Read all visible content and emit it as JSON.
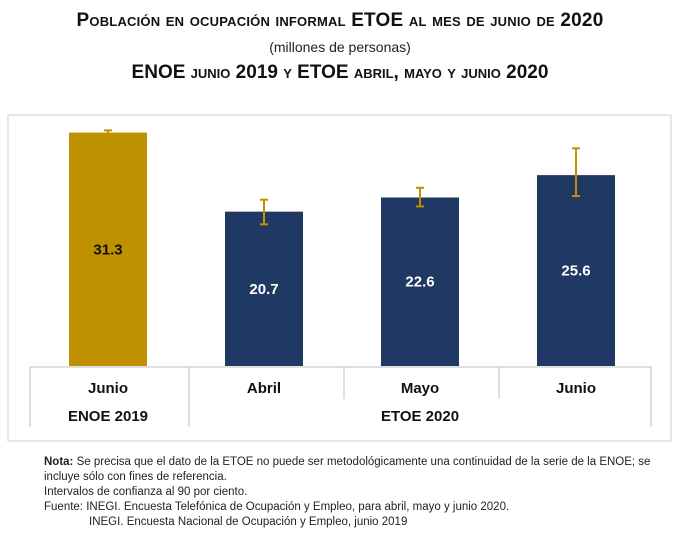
{
  "header": {
    "title": "Población en ocupación informal ETOE al mes de junio de 2020",
    "subtitle": "(millones de personas)",
    "title2": "ENOE junio 2019 y ETOE abril, mayo y junio 2020"
  },
  "chart_data": {
    "type": "bar",
    "categories": [
      "Junio",
      "Abril",
      "Mayo",
      "Junio"
    ],
    "groups": [
      {
        "label": "ENOE 2019",
        "categories": [
          0
        ]
      },
      {
        "label": "ETOE 2020",
        "categories": [
          1,
          2,
          3
        ]
      }
    ],
    "values": [
      31.3,
      20.7,
      22.6,
      25.6
    ],
    "value_labels": [
      "31.3",
      "20.7",
      "22.6",
      "25.6"
    ],
    "error_bars": [
      [
        31.1,
        31.6
      ],
      [
        19.0,
        22.3
      ],
      [
        21.4,
        23.9
      ],
      [
        22.8,
        29.2
      ]
    ],
    "bar_colors": [
      "#bf9000",
      "#1f3864",
      "#1f3864",
      "#1f3864"
    ],
    "error_color": "#bf9000",
    "ylim": [
      0,
      32
    ],
    "xlabel": "",
    "ylabel": "",
    "grid": false
  },
  "notes": {
    "nota_label": "Nota:",
    "nota_text": " Se precisa que el dato de la ETOE no puede ser metodológicamente una continuidad de la serie de la ENOE; se incluye sólo con fines de referencia.",
    "intervals": "Intervalos de confianza al 90 por ciento.",
    "fuente1": "Fuente: INEGI. Encuesta Telefónica de Ocupación y Empleo, para abril, mayo y junio 2020.",
    "fuente2": "INEGI. Encuesta Nacional de Ocupación y Empleo, junio 2019"
  }
}
